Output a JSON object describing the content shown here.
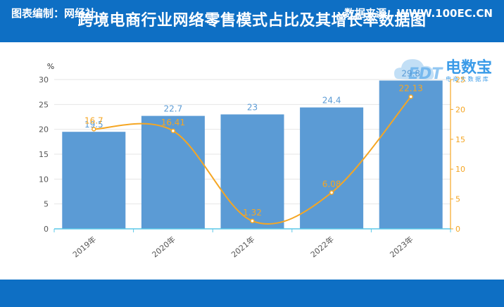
{
  "header": {
    "title": "跨境电商行业网络零售模式占比及其增长率数据图"
  },
  "footer": {
    "left": "图表编制：网经社",
    "right": "数据来源：WWW.100EC.CN"
  },
  "logo": {
    "cn": "电数宝",
    "sub": "电 商 大 数 据 库",
    "en": "EDT"
  },
  "chart_data": {
    "type": "bar",
    "categories": [
      "2019年",
      "2020年",
      "2021年",
      "2022年",
      "2023年"
    ],
    "series": [
      {
        "type": "bar",
        "values": [
          19.5,
          22.7,
          23,
          24.4,
          29.8
        ],
        "labels": [
          "19.5",
          "22.7",
          "23",
          "24.4",
          "29.8"
        ],
        "axis": "left",
        "color": "#5b9bd5"
      },
      {
        "type": "line",
        "values": [
          16.7,
          16.41,
          1.32,
          6.08,
          22.13
        ],
        "labels": [
          "16.7",
          "16.41",
          "1.32",
          "6.08",
          "22.13"
        ],
        "axis": "right",
        "color": "#f5a623"
      }
    ],
    "ylabel": "%",
    "ylim": [
      0,
      30
    ],
    "yticks": [
      0,
      5,
      10,
      15,
      20,
      25,
      30
    ],
    "y2lim": [
      0,
      25
    ],
    "y2ticks": [
      0,
      5,
      10,
      15,
      20,
      25
    ],
    "grid": true,
    "label_colors": {
      "bar": "#5b9bd5",
      "line": "#f5a623"
    }
  }
}
